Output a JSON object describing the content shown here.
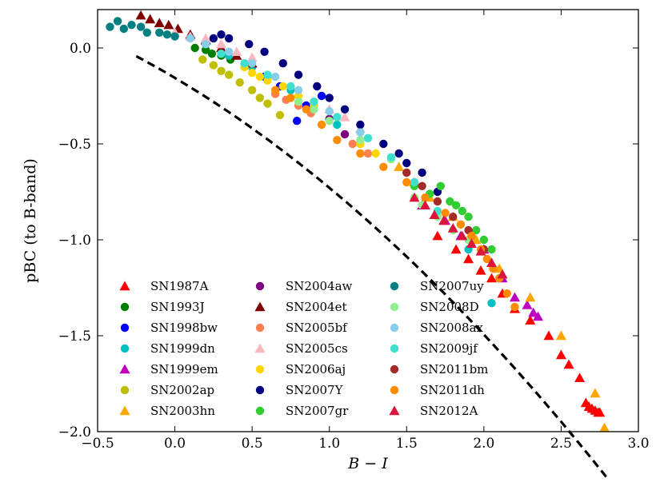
{
  "chart_data": {
    "type": "scatter",
    "title": "",
    "xlabel": "B − I",
    "ylabel": "pBC (to B-band)",
    "xlim": [
      -0.5,
      3.0
    ],
    "ylim": [
      -2.0,
      0.2
    ],
    "xticks": [
      -0.5,
      0.0,
      0.5,
      1.0,
      1.5,
      2.0,
      2.5,
      3.0
    ],
    "xtick_labels": [
      "−0.5",
      "0.0",
      "0.5",
      "1.0",
      "1.5",
      "2.0",
      "2.5",
      "3.0"
    ],
    "yticks": [
      0.0,
      -0.5,
      -1.0,
      -1.5,
      -2.0
    ],
    "ytick_labels": [
      "0.0",
      "−0.5",
      "−1.0",
      "−1.5",
      "−2.0"
    ],
    "grid": false,
    "legend_position": "bottom-left",
    "fit_line": {
      "style": "dashed",
      "color": "#000000",
      "coeffs": [
        -0.096,
        -0.477,
        -0.156
      ],
      "x": [
        -0.3,
        -0.1,
        0.2,
        0.5,
        0.8,
        1.1,
        1.4,
        1.7,
        2.0,
        2.3,
        2.6,
        2.8
      ]
    },
    "series": [
      {
        "name": "SN1987A",
        "color": "#ff0000",
        "marker": "triangle",
        "x": [
          1.7,
          1.82,
          1.9,
          1.98,
          2.05,
          2.12,
          2.2,
          2.3,
          2.42,
          2.5,
          2.55,
          2.62,
          2.66,
          2.68,
          2.7,
          2.72,
          2.74,
          2.75
        ],
        "y": [
          -0.98,
          -1.05,
          -1.1,
          -1.16,
          -1.2,
          -1.28,
          -1.36,
          -1.42,
          -1.5,
          -1.6,
          -1.65,
          -1.72,
          -1.85,
          -1.87,
          -1.88,
          -1.89,
          -1.9,
          -1.9
        ]
      },
      {
        "name": "SN1993J",
        "color": "#007f00",
        "marker": "circle",
        "x": [
          0.13,
          0.2,
          0.24,
          0.3,
          0.36
        ],
        "y": [
          0.0,
          -0.01,
          -0.03,
          -0.04,
          -0.06
        ]
      },
      {
        "name": "SN1998bw",
        "color": "#0000ff",
        "marker": "circle",
        "x": [
          0.58,
          0.68,
          0.79,
          0.85,
          0.95
        ],
        "y": [
          -0.15,
          -0.2,
          -0.38,
          -0.3,
          -0.25
        ]
      },
      {
        "name": "SN1999dn",
        "color": "#00bfbf",
        "marker": "circle",
        "x": [
          0.2,
          0.35,
          0.5,
          0.6,
          0.75,
          0.9,
          1.05,
          1.2,
          1.9,
          2.05
        ],
        "y": [
          0.02,
          -0.04,
          -0.1,
          -0.15,
          -0.22,
          -0.3,
          -0.4,
          -0.5,
          -1.05,
          -1.33
        ]
      },
      {
        "name": "SN1999em",
        "color": "#bf00bf",
        "marker": "triangle",
        "x": [
          1.6,
          1.75,
          1.85,
          2.0,
          2.12,
          2.2,
          2.28,
          2.32,
          2.35
        ],
        "y": [
          -0.82,
          -0.9,
          -0.98,
          -1.05,
          -1.2,
          -1.3,
          -1.34,
          -1.38,
          -1.4
        ]
      },
      {
        "name": "SN2002ap",
        "color": "#bfbf00",
        "marker": "circle",
        "x": [
          0.18,
          0.25,
          0.3,
          0.35,
          0.42,
          0.5,
          0.55,
          0.6,
          0.68
        ],
        "y": [
          -0.06,
          -0.09,
          -0.12,
          -0.14,
          -0.18,
          -0.22,
          -0.26,
          -0.29,
          -0.35
        ]
      },
      {
        "name": "SN2003hn",
        "color": "#ffa500",
        "marker": "triangle",
        "x": [
          1.45,
          1.55,
          1.65,
          1.8,
          1.95,
          2.1,
          2.3,
          2.5,
          2.72,
          2.78
        ],
        "y": [
          -0.62,
          -0.7,
          -0.78,
          -0.88,
          -1.0,
          -1.15,
          -1.3,
          -1.5,
          -1.8,
          -1.98
        ]
      },
      {
        "name": "SN2004aw",
        "color": "#7f007f",
        "marker": "circle",
        "x": [
          0.9,
          1.0,
          1.1
        ],
        "y": [
          -0.3,
          -0.37,
          -0.45
        ]
      },
      {
        "name": "SN2004et",
        "color": "#7f0000",
        "marker": "triangle",
        "x": [
          -0.22,
          -0.16,
          -0.1,
          -0.04,
          0.02,
          0.1,
          0.2,
          0.3,
          0.4,
          0.5
        ],
        "y": [
          0.17,
          0.15,
          0.13,
          0.12,
          0.1,
          0.07,
          0.04,
          0.0,
          -0.04,
          -0.08
        ]
      },
      {
        "name": "SN2005bf",
        "color": "#ff7f50",
        "marker": "circle",
        "x": [
          0.65,
          0.72,
          0.8,
          0.88,
          1.15,
          1.25
        ],
        "y": [
          -0.24,
          -0.27,
          -0.3,
          -0.34,
          -0.5,
          -0.55
        ]
      },
      {
        "name": "SN2005cs",
        "color": "#ffb6c1",
        "marker": "triangle",
        "x": [
          0.0,
          0.1,
          0.2,
          0.3,
          0.4,
          0.5,
          1.0,
          1.1,
          1.2
        ],
        "y": [
          0.08,
          0.06,
          0.05,
          0.02,
          -0.02,
          -0.05,
          -0.32,
          -0.36,
          -0.42
        ]
      },
      {
        "name": "SN2006aj",
        "color": "#ffd700",
        "marker": "circle",
        "x": [
          0.45,
          0.5,
          0.55,
          0.6,
          0.7,
          0.8,
          0.9,
          1.2,
          1.3
        ],
        "y": [
          -0.1,
          -0.13,
          -0.15,
          -0.17,
          -0.2,
          -0.25,
          -0.3,
          -0.5,
          -0.55
        ]
      },
      {
        "name": "SN2007Y",
        "color": "#00007f",
        "marker": "circle",
        "x": [
          0.25,
          0.3,
          0.35,
          0.48,
          0.58,
          0.7,
          0.8,
          0.92,
          1.0,
          1.1,
          1.2,
          1.35,
          1.45,
          1.5,
          1.6,
          1.7
        ],
        "y": [
          0.05,
          0.07,
          0.05,
          0.02,
          -0.02,
          -0.08,
          -0.14,
          -0.2,
          -0.26,
          -0.32,
          -0.4,
          -0.5,
          -0.55,
          -0.6,
          -0.65,
          -0.75
        ]
      },
      {
        "name": "SN2007gr",
        "color": "#32cd32",
        "marker": "circle",
        "x": [
          1.55,
          1.65,
          1.72,
          1.78,
          1.82,
          1.86,
          1.9,
          1.95,
          2.0,
          2.05
        ],
        "y": [
          -0.72,
          -0.76,
          -0.72,
          -0.8,
          -0.82,
          -0.85,
          -0.88,
          -0.95,
          -1.0,
          -1.05
        ]
      },
      {
        "name": "SN2007uy",
        "color": "#008080",
        "marker": "circle",
        "x": [
          -0.42,
          -0.37,
          -0.33,
          -0.28,
          -0.22,
          -0.18,
          -0.1,
          -0.05,
          0.0
        ],
        "y": [
          0.11,
          0.14,
          0.1,
          0.12,
          0.11,
          0.08,
          0.08,
          0.07,
          0.06
        ]
      },
      {
        "name": "SN2008D",
        "color": "#90ee90",
        "marker": "circle",
        "x": [
          0.8,
          0.9,
          1.0,
          1.2,
          1.4,
          1.5,
          1.55,
          1.6,
          1.7,
          1.8,
          1.9,
          2.0
        ],
        "y": [
          -0.28,
          -0.32,
          -0.38,
          -0.48,
          -0.58,
          -0.65,
          -0.78,
          -0.82,
          -0.88,
          -0.95,
          -1.0,
          -1.05
        ]
      },
      {
        "name": "SN2008ax",
        "color": "#87ceeb",
        "marker": "circle",
        "x": [
          0.1,
          0.2,
          0.35,
          0.5,
          0.65,
          0.8,
          1.0,
          1.2
        ],
        "y": [
          0.05,
          0.02,
          -0.02,
          -0.08,
          -0.15,
          -0.22,
          -0.33,
          -0.44
        ]
      },
      {
        "name": "SN2009jf",
        "color": "#40e0d0",
        "marker": "circle",
        "x": [
          0.3,
          0.45,
          0.6,
          0.75,
          0.9,
          1.05,
          1.25,
          1.4,
          1.55,
          1.7
        ],
        "y": [
          -0.03,
          -0.08,
          -0.14,
          -0.2,
          -0.28,
          -0.36,
          -0.47,
          -0.57,
          -0.7,
          -0.85
        ]
      },
      {
        "name": "SN2011bm",
        "color": "#a52a2a",
        "marker": "circle",
        "x": [
          1.5,
          1.6,
          1.7,
          1.8,
          1.9,
          2.0
        ],
        "y": [
          -0.65,
          -0.72,
          -0.8,
          -0.88,
          -0.95,
          -1.05
        ]
      },
      {
        "name": "SN2011dh",
        "color": "#ff8c00",
        "marker": "circle",
        "x": [
          0.65,
          0.75,
          0.85,
          0.95,
          1.05,
          1.2,
          1.35,
          1.5,
          1.62,
          1.75,
          1.85,
          1.92,
          1.98,
          2.02,
          2.06,
          2.1,
          2.15,
          2.2
        ],
        "y": [
          -0.22,
          -0.26,
          -0.32,
          -0.4,
          -0.48,
          -0.55,
          -0.62,
          -0.7,
          -0.78,
          -0.86,
          -0.92,
          -0.98,
          -1.05,
          -1.1,
          -1.15,
          -1.2,
          -1.28,
          -1.35
        ]
      },
      {
        "name": "SN2012A",
        "color": "#dc143c",
        "marker": "triangle",
        "x": [
          1.55,
          1.62,
          1.68,
          1.74,
          1.8,
          1.86,
          1.92,
          1.98,
          2.05,
          2.12
        ],
        "y": [
          -0.78,
          -0.82,
          -0.87,
          -0.9,
          -0.94,
          -0.98,
          -1.02,
          -1.06,
          -1.12,
          -1.18
        ]
      }
    ]
  }
}
